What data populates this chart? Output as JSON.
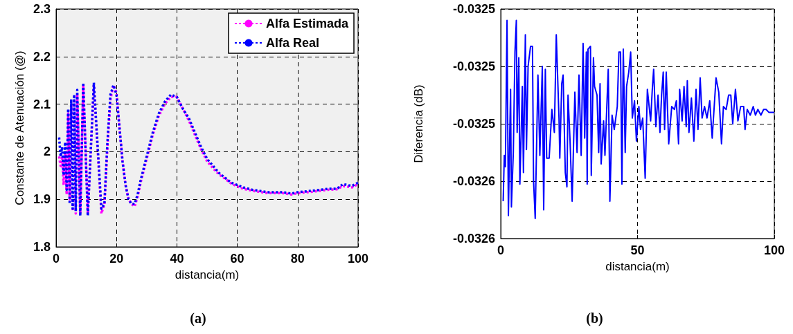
{
  "chart_data": [
    {
      "type": "line",
      "xlabel": "distancia(m)",
      "ylabel": "Constante de Atenuación (@)",
      "annotations": [
        "(a)"
      ],
      "xlim": [
        0,
        100
      ],
      "ylim": [
        1.8,
        2.3
      ],
      "xticks": [
        0,
        20,
        40,
        60,
        80,
        100
      ],
      "yticks": [
        1.8,
        1.9,
        2,
        2.1,
        2.2,
        2.3
      ],
      "grid": true,
      "legend": "top right",
      "line_style": "dotted",
      "marker": "none",
      "series": [
        {
          "name": "Alfa Estimada",
          "color": "#ff00ff",
          "x": [
            1,
            1.5,
            2,
            2.5,
            3,
            3.5,
            4,
            4.5,
            5,
            5.5,
            6,
            6.5,
            7,
            8,
            9,
            10.5,
            12.5,
            15,
            16,
            17,
            18,
            19,
            20,
            21,
            22,
            23,
            24,
            25,
            26,
            27,
            28,
            30,
            32,
            34,
            36,
            38,
            40,
            42,
            44,
            46,
            48,
            50,
            52,
            54,
            56,
            58,
            60,
            62,
            65,
            70,
            75,
            78,
            80,
            85,
            90,
            93,
            95,
            98,
            100
          ],
          "values": [
            1.99,
            1.97,
            1.99,
            1.93,
            2.0,
            1.91,
            2.08,
            1.9,
            2.1,
            1.875,
            2.11,
            1.87,
            2.12,
            1.87,
            2.14,
            1.87,
            2.14,
            1.87,
            1.89,
            2.01,
            2.11,
            2.14,
            2.125,
            2.05,
            1.98,
            1.93,
            1.9,
            1.89,
            1.885,
            1.905,
            1.935,
            1.985,
            2.035,
            2.075,
            2.1,
            2.115,
            2.115,
            2.09,
            2.065,
            2.035,
            2.005,
            1.98,
            1.965,
            1.952,
            1.943,
            1.933,
            1.927,
            1.922,
            1.918,
            1.913,
            1.913,
            1.91,
            1.913,
            1.916,
            1.92,
            1.921,
            1.928,
            1.925,
            1.932
          ]
        },
        {
          "name": "Alfa Real",
          "color": "#0000ff",
          "x": [
            1,
            1.5,
            2,
            2.5,
            3,
            3.5,
            4,
            4.5,
            5,
            5.5,
            6,
            6.5,
            7,
            8,
            9,
            10.5,
            12.5,
            15,
            16,
            17,
            18,
            19,
            20,
            21,
            22,
            23,
            24,
            25,
            26,
            27,
            28,
            30,
            32,
            34,
            36,
            38,
            40,
            42,
            44,
            46,
            48,
            50,
            52,
            54,
            56,
            58,
            60,
            62,
            65,
            70,
            75,
            78,
            80,
            85,
            90,
            93,
            95,
            98,
            100
          ],
          "values": [
            2.03,
            1.99,
            2.01,
            1.95,
            2.02,
            1.92,
            2.09,
            1.89,
            2.11,
            1.88,
            2.12,
            1.875,
            2.13,
            1.865,
            2.145,
            1.865,
            2.145,
            1.88,
            1.89,
            2.02,
            2.12,
            2.14,
            2.12,
            2.05,
            1.98,
            1.93,
            1.9,
            1.89,
            1.89,
            1.91,
            1.94,
            1.99,
            2.04,
            2.08,
            2.105,
            2.12,
            2.115,
            2.09,
            2.07,
            2.04,
            2.01,
            1.985,
            1.97,
            1.955,
            1.945,
            1.935,
            1.93,
            1.925,
            1.92,
            1.915,
            1.915,
            1.912,
            1.915,
            1.918,
            1.922,
            1.922,
            1.932,
            1.928,
            1.935
          ]
        }
      ]
    },
    {
      "type": "line",
      "xlabel": "distancia(m)",
      "ylabel": "Diferencia (dB)",
      "annotations": [
        "(b)"
      ],
      "xlim": [
        0,
        100
      ],
      "ylim": [
        -0.03258,
        -0.0325
      ],
      "xticks": [
        0,
        50,
        100
      ],
      "yticks": [
        {
          "value": -0.03258,
          "label": "-0.0326"
        },
        {
          "value": -0.03256,
          "label": "-0.0326"
        },
        {
          "value": -0.03254,
          "label": "-0.0325"
        },
        {
          "value": -0.03252,
          "label": "-0.0325"
        },
        {
          "value": -0.0325,
          "label": "-0.0325"
        }
      ],
      "grid": true,
      "line_style": "solid",
      "marker": "none",
      "series": [
        {
          "color": "#0000ff",
          "x": [
            0.9,
            1.3,
            1.7,
            2.3,
            2.8,
            3.2,
            3.6,
            3.9,
            4.6,
            5.2,
            5.7,
            6.0,
            6.6,
            7.0,
            7.9,
            8.3,
            9.0,
            9.4,
            10.0,
            10.9,
            11.6,
            12.0,
            12.6,
            13.6,
            14.3,
            15.2,
            15.7,
            16.3,
            16.8,
            17.7,
            18.7,
            19.6,
            20.3,
            21.3,
            21.6,
            22.3,
            22.8,
            23.6,
            24.2,
            24.6,
            25.3,
            26.1,
            27.1,
            27.9,
            28.6,
            29.4,
            30.1,
            30.7,
            31.3,
            31.6,
            31.9,
            32.8,
            33.1,
            33.9,
            34.3,
            35.2,
            35.8,
            36.3,
            36.7,
            37.6,
            38.1,
            39.3,
            39.9,
            40.7,
            41.5,
            42.6,
            43.2,
            43.8,
            44.3,
            44.8,
            45.5,
            46.0,
            46.8,
            47.5,
            48.1,
            48.9,
            49.6,
            50.5,
            51.1,
            51.9,
            52.8,
            53.6,
            54.8,
            55.4,
            55.9,
            56.7,
            57.5,
            58.2,
            58.8,
            59.4,
            59.9,
            60.5,
            61.4,
            62.5,
            63.5,
            64.2,
            65.0,
            65.4,
            66.3,
            67.0,
            67.8,
            68.2,
            68.8,
            69.7,
            70.6,
            71.4,
            72.1,
            72.9,
            73.6,
            74.5,
            75.4,
            76.4,
            77.3,
            78.1,
            78.7,
            79.7,
            80.7,
            81.4,
            82.4,
            83.3,
            84.1,
            84.8,
            85.8,
            86.7,
            87.7,
            88.8,
            89.3,
            90.1,
            91.2,
            92.3,
            93.1,
            94.0,
            95.1,
            96.1,
            97.0,
            98.0,
            99.1,
            100
          ],
          "values": [
            -0.032567,
            -0.032551,
            -0.032555,
            -0.032504,
            -0.032572,
            -0.032549,
            -0.032528,
            -0.032569,
            -0.03255,
            -0.032515,
            -0.032504,
            -0.032543,
            -0.032517,
            -0.032561,
            -0.032527,
            -0.032557,
            -0.032509,
            -0.032549,
            -0.03252,
            -0.032513,
            -0.032513,
            -0.03256,
            -0.032573,
            -0.032523,
            -0.032551,
            -0.03252,
            -0.03257,
            -0.032521,
            -0.032552,
            -0.032552,
            -0.032535,
            -0.032543,
            -0.032509,
            -0.032538,
            -0.032552,
            -0.032526,
            -0.032523,
            -0.032557,
            -0.032562,
            -0.03253,
            -0.032545,
            -0.032567,
            -0.032529,
            -0.03255,
            -0.032523,
            -0.032551,
            -0.032512,
            -0.032545,
            -0.032515,
            -0.032561,
            -0.032514,
            -0.032513,
            -0.032558,
            -0.032517,
            -0.032527,
            -0.03253,
            -0.03255,
            -0.032526,
            -0.032554,
            -0.032539,
            -0.032551,
            -0.032521,
            -0.032567,
            -0.032537,
            -0.032542,
            -0.032534,
            -0.032515,
            -0.032515,
            -0.032561,
            -0.032514,
            -0.03255,
            -0.032527,
            -0.032522,
            -0.032515,
            -0.032538,
            -0.032532,
            -0.032546,
            -0.032534,
            -0.032542,
            -0.032538,
            -0.032559,
            -0.032528,
            -0.032539,
            -0.032528,
            -0.032521,
            -0.032541,
            -0.03253,
            -0.032543,
            -0.03253,
            -0.032522,
            -0.032542,
            -0.032522,
            -0.032547,
            -0.032534,
            -0.032535,
            -0.032532,
            -0.032547,
            -0.032528,
            -0.032539,
            -0.032527,
            -0.032541,
            -0.032525,
            -0.032543,
            -0.032531,
            -0.032546,
            -0.032528,
            -0.032542,
            -0.032524,
            -0.032538,
            -0.032534,
            -0.032538,
            -0.032532,
            -0.032545,
            -0.032533,
            -0.032524,
            -0.032529,
            -0.032547,
            -0.032534,
            -0.032535,
            -0.03253,
            -0.03253,
            -0.03254,
            -0.032528,
            -0.032539,
            -0.032534,
            -0.032534,
            -0.032542,
            -0.032535,
            -0.032537,
            -0.032534,
            -0.032537,
            -0.032535,
            -0.032537,
            -0.032535,
            -0.032535,
            -0.032536,
            -0.032536,
            -0.032536
          ]
        }
      ]
    }
  ]
}
